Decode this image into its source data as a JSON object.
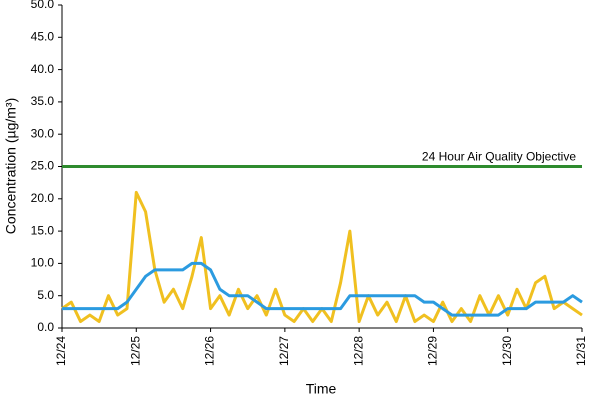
{
  "chart_data": {
    "type": "line",
    "y_label": "Concentration (µg/m³)",
    "x_label": "Time",
    "x": [
      0,
      3,
      6,
      9,
      12,
      15,
      18,
      21,
      24,
      27,
      30,
      33,
      36,
      39,
      42,
      45,
      48,
      51,
      54,
      57,
      60,
      63,
      66,
      69,
      72,
      75,
      78,
      81,
      84,
      87,
      90,
      93,
      96,
      99,
      102,
      105,
      108,
      111,
      114,
      117,
      120,
      123,
      126,
      129,
      132,
      135,
      138,
      141,
      144,
      147,
      150,
      153,
      156,
      159,
      162,
      165,
      168
    ],
    "xlim": [
      0,
      168
    ],
    "xticks": [
      {
        "value": 0,
        "label": "12/24"
      },
      {
        "value": 24,
        "label": "12/25"
      },
      {
        "value": 48,
        "label": "12/26"
      },
      {
        "value": 72,
        "label": "12/27"
      },
      {
        "value": 96,
        "label": "12/28"
      },
      {
        "value": 120,
        "label": "12/29"
      },
      {
        "value": 144,
        "label": "12/30"
      },
      {
        "value": 168,
        "label": "12/31"
      }
    ],
    "ylim": [
      0,
      50
    ],
    "yticks": [
      {
        "value": 0,
        "label": "0.0"
      },
      {
        "value": 5,
        "label": "5.0"
      },
      {
        "value": 10,
        "label": "10.0"
      },
      {
        "value": 15,
        "label": "15.0"
      },
      {
        "value": 20,
        "label": "20.0"
      },
      {
        "value": 25,
        "label": "25.0"
      },
      {
        "value": 30,
        "label": "30.0"
      },
      {
        "value": 35,
        "label": "35.0"
      },
      {
        "value": 40,
        "label": "40.0"
      },
      {
        "value": 45,
        "label": "45.0"
      },
      {
        "value": 50,
        "label": "50.0"
      }
    ],
    "series": [
      {
        "color": "#f0c020",
        "values": [
          3,
          4,
          1,
          2,
          1,
          5,
          2,
          3,
          21,
          18,
          9,
          4,
          6,
          3,
          8,
          14,
          3,
          5,
          2,
          6,
          3,
          5,
          2,
          6,
          2,
          1,
          3,
          1,
          3,
          1,
          7,
          15,
          1,
          5,
          2,
          4,
          1,
          5,
          1,
          2,
          1,
          4,
          1,
          3,
          1,
          5,
          2,
          5,
          2,
          6,
          3,
          7,
          8,
          3,
          4,
          3,
          2
        ]
      },
      {
        "color": "#2b9be0",
        "values": [
          3,
          3,
          3,
          3,
          3,
          3,
          3,
          4,
          6,
          8,
          9,
          9,
          9,
          9,
          10,
          10,
          9,
          6,
          5,
          5,
          5,
          4,
          3,
          3,
          3,
          3,
          3,
          3,
          3,
          3,
          3,
          5,
          5,
          5,
          5,
          5,
          5,
          5,
          5,
          4,
          4,
          3,
          2,
          2,
          2,
          2,
          2,
          2,
          3,
          3,
          3,
          4,
          4,
          4,
          4,
          5,
          4
        ]
      }
    ],
    "reference_lines": [
      {
        "value": 25,
        "label": "24 Hour Air Quality Objective",
        "color": "#2e8b2e"
      }
    ]
  }
}
